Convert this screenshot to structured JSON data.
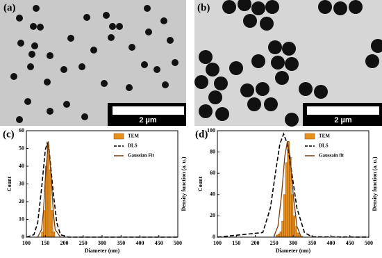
{
  "panels": [
    {
      "label": "(a)",
      "scale_bar": "2 µm"
    },
    {
      "label": "(b)",
      "scale_bar": "2 µm"
    }
  ],
  "chart_data": [
    {
      "type": "histogram",
      "panel_label": "(c)",
      "xlabel": "Diameter (nm)",
      "ylabel": "Count",
      "y2label": "Density function (a. u.)",
      "xlim": [
        100,
        500
      ],
      "xticks": [
        100,
        150,
        200,
        250,
        300,
        350,
        400,
        450,
        500
      ],
      "ylim": [
        0,
        60
      ],
      "yticks": [
        0,
        10,
        20,
        30,
        40,
        50,
        60
      ],
      "series": [
        {
          "name": "TEM",
          "color": "#e8901c",
          "bins": [
            140,
            145,
            150,
            155,
            160,
            165,
            170,
            175
          ],
          "values": [
            3,
            15,
            40,
            52,
            38,
            15,
            3
          ]
        },
        {
          "name": "DLS",
          "color": "#000000",
          "dashed": true,
          "x": [
            100,
            120,
            130,
            140,
            150,
            155,
            160,
            170,
            180,
            190,
            210,
            500
          ],
          "values": [
            0,
            1.4,
            8.3,
            27.2,
            49.2,
            53,
            49.2,
            27.2,
            8.3,
            1.4,
            0,
            0
          ]
        },
        {
          "name": "Gaussian Fit",
          "color": "#7a3b0c",
          "x": [
            130,
            140,
            145,
            150,
            158,
            166,
            171,
            176,
            190
          ],
          "values": [
            0.1,
            4.3,
            14.4,
            32.8,
            54,
            32.8,
            14.4,
            4.3,
            0
          ]
        }
      ]
    },
    {
      "type": "histogram",
      "panel_label": "(d)",
      "xlabel": "Diameter (nm)",
      "ylabel": "Count",
      "y2label": "Density function (a. u.)",
      "xlim": [
        100,
        500
      ],
      "xticks": [
        100,
        150,
        200,
        250,
        300,
        350,
        400,
        450,
        500
      ],
      "ylim": [
        0,
        100
      ],
      "yticks": [
        0,
        20,
        40,
        60,
        80,
        100
      ],
      "series": [
        {
          "name": "TEM",
          "color": "#e8901c",
          "bins": [
            255,
            260,
            265,
            270,
            275,
            280,
            285,
            290,
            295,
            300,
            305,
            310,
            315,
            320,
            325
          ],
          "values": [
            2,
            3,
            5,
            15,
            40,
            70,
            90,
            75,
            40,
            20,
            10,
            4,
            2,
            1
          ]
        },
        {
          "name": "DLS",
          "color": "#000000",
          "dashed": true,
          "x": [
            100,
            220,
            240,
            255,
            265,
            275,
            285,
            295,
            310,
            330,
            350,
            500
          ],
          "values": [
            0,
            4.3,
            27.4,
            64.2,
            87.5,
            97,
            87.5,
            64.2,
            27.4,
            4.3,
            0.3,
            0
          ]
        },
        {
          "name": "Gaussain fit",
          "color": "#7a3b0c",
          "x": [
            250,
            260,
            270,
            278,
            285,
            292,
            300,
            310,
            320
          ],
          "values": [
            1.3,
            10.3,
            41.2,
            75.9,
            90,
            75.9,
            41.2,
            10.3,
            1.3
          ]
        }
      ]
    }
  ]
}
